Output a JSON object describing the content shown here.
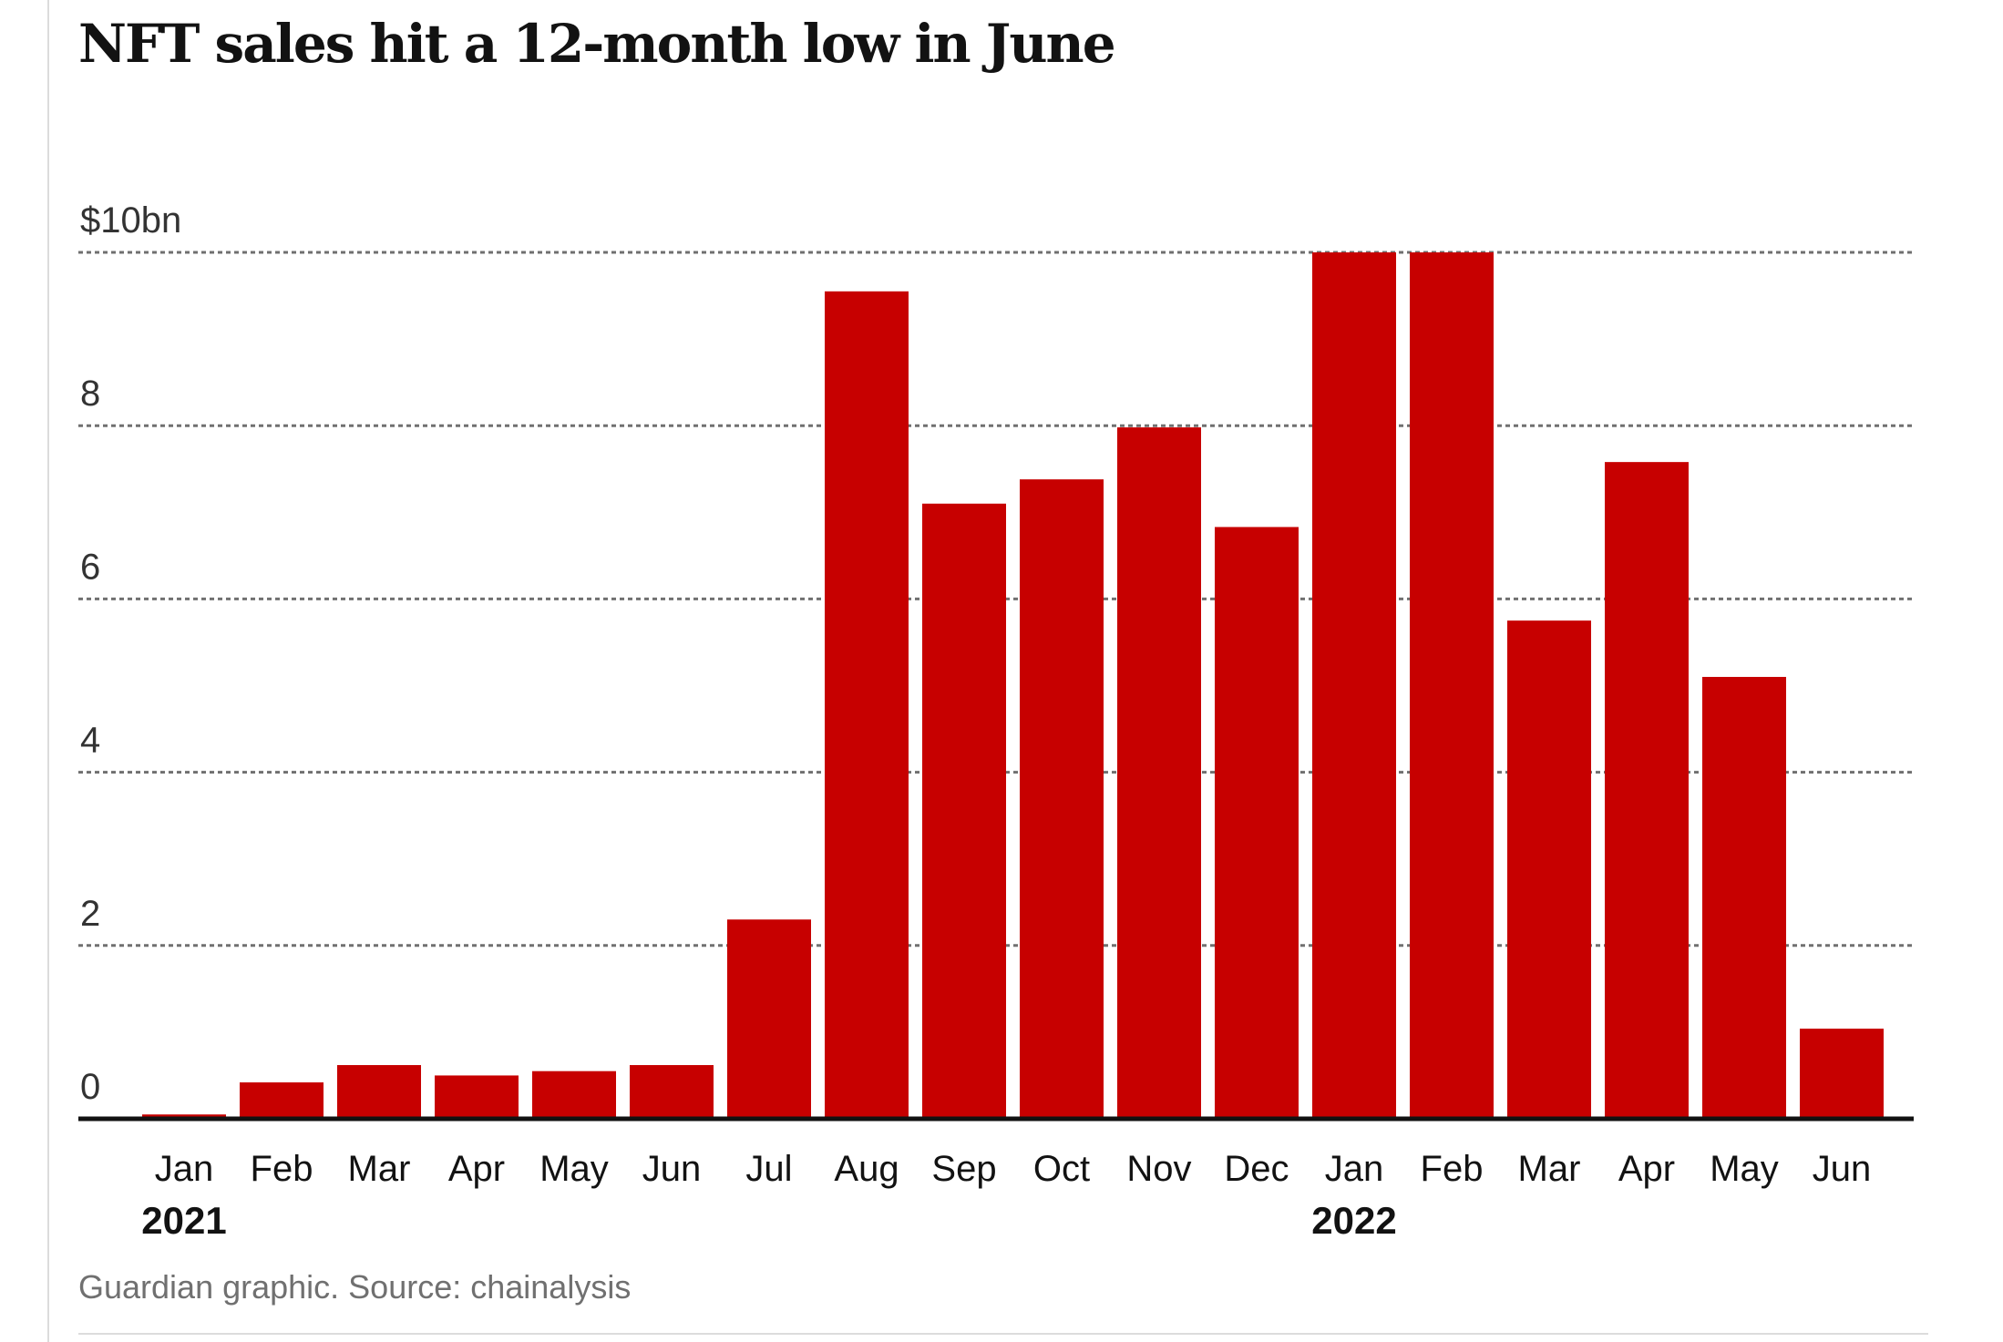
{
  "chart_data": {
    "type": "bar",
    "title": "NFT sales hit a 12-month low in June",
    "source": "Guardian graphic. Source: chainalysis",
    "categories": [
      "Jan",
      "Feb",
      "Mar",
      "Apr",
      "May",
      "Jun",
      "Jul",
      "Aug",
      "Sep",
      "Oct",
      "Nov",
      "Dec",
      "Jan",
      "Feb",
      "Mar",
      "Apr",
      "May",
      "Jun"
    ],
    "year_labels": [
      {
        "index": 0,
        "label": "2021"
      },
      {
        "index": 12,
        "label": "2022"
      }
    ],
    "values": [
      0.05,
      0.42,
      0.62,
      0.5,
      0.55,
      0.62,
      2.3,
      9.55,
      7.1,
      7.38,
      7.98,
      6.83,
      10.0,
      10.0,
      5.75,
      7.58,
      5.1,
      1.04
    ],
    "y_ticks": [
      {
        "value": 0,
        "label": "0"
      },
      {
        "value": 2,
        "label": "2"
      },
      {
        "value": 4,
        "label": "4"
      },
      {
        "value": 6,
        "label": "6"
      },
      {
        "value": 8,
        "label": "8"
      },
      {
        "value": 10,
        "label": "$10bn"
      }
    ],
    "ylim": [
      0,
      10
    ],
    "grid": true,
    "bar_color": "#c70000",
    "grid_color": "#707070",
    "text_color": "#121212"
  }
}
